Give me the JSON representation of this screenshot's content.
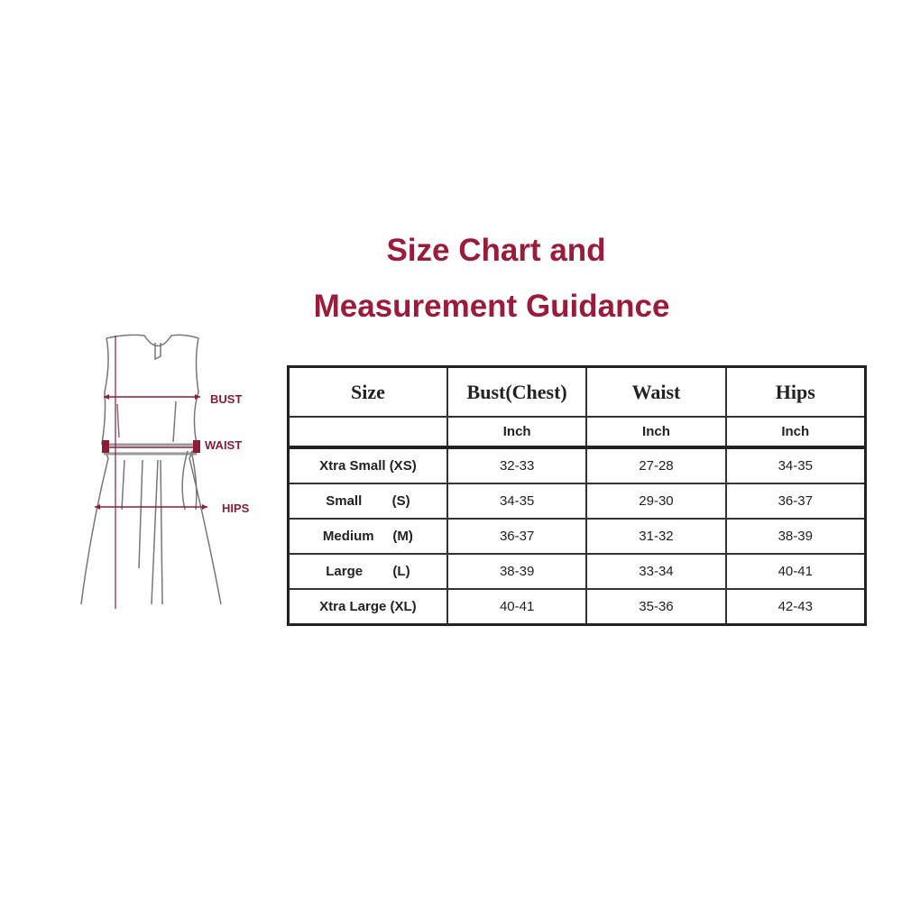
{
  "title": {
    "line1": "Size Chart and",
    "line2": "Measurement Guidance"
  },
  "diagram": {
    "labels": {
      "bust": "BUST",
      "waist": "WAIST",
      "hips": "HIPS"
    },
    "accent_color": "#8a1e36"
  },
  "table": {
    "headers": [
      "Size",
      "Bust(Chest)",
      "Waist",
      "Hips"
    ],
    "units": [
      "",
      "Inch",
      "Inch",
      "Inch"
    ],
    "rows": [
      [
        "Xtra Small (XS)",
        "32-33",
        "27-28",
        "34-35"
      ],
      [
        "Small        (S)",
        "34-35",
        "29-30",
        "36-37"
      ],
      [
        "Medium     (M)",
        "36-37",
        "31-32",
        "38-39"
      ],
      [
        "Large        (L)",
        "38-39",
        "33-34",
        "40-41"
      ],
      [
        "Xtra Large (XL)",
        "40-41",
        "35-36",
        "42-43"
      ]
    ]
  }
}
